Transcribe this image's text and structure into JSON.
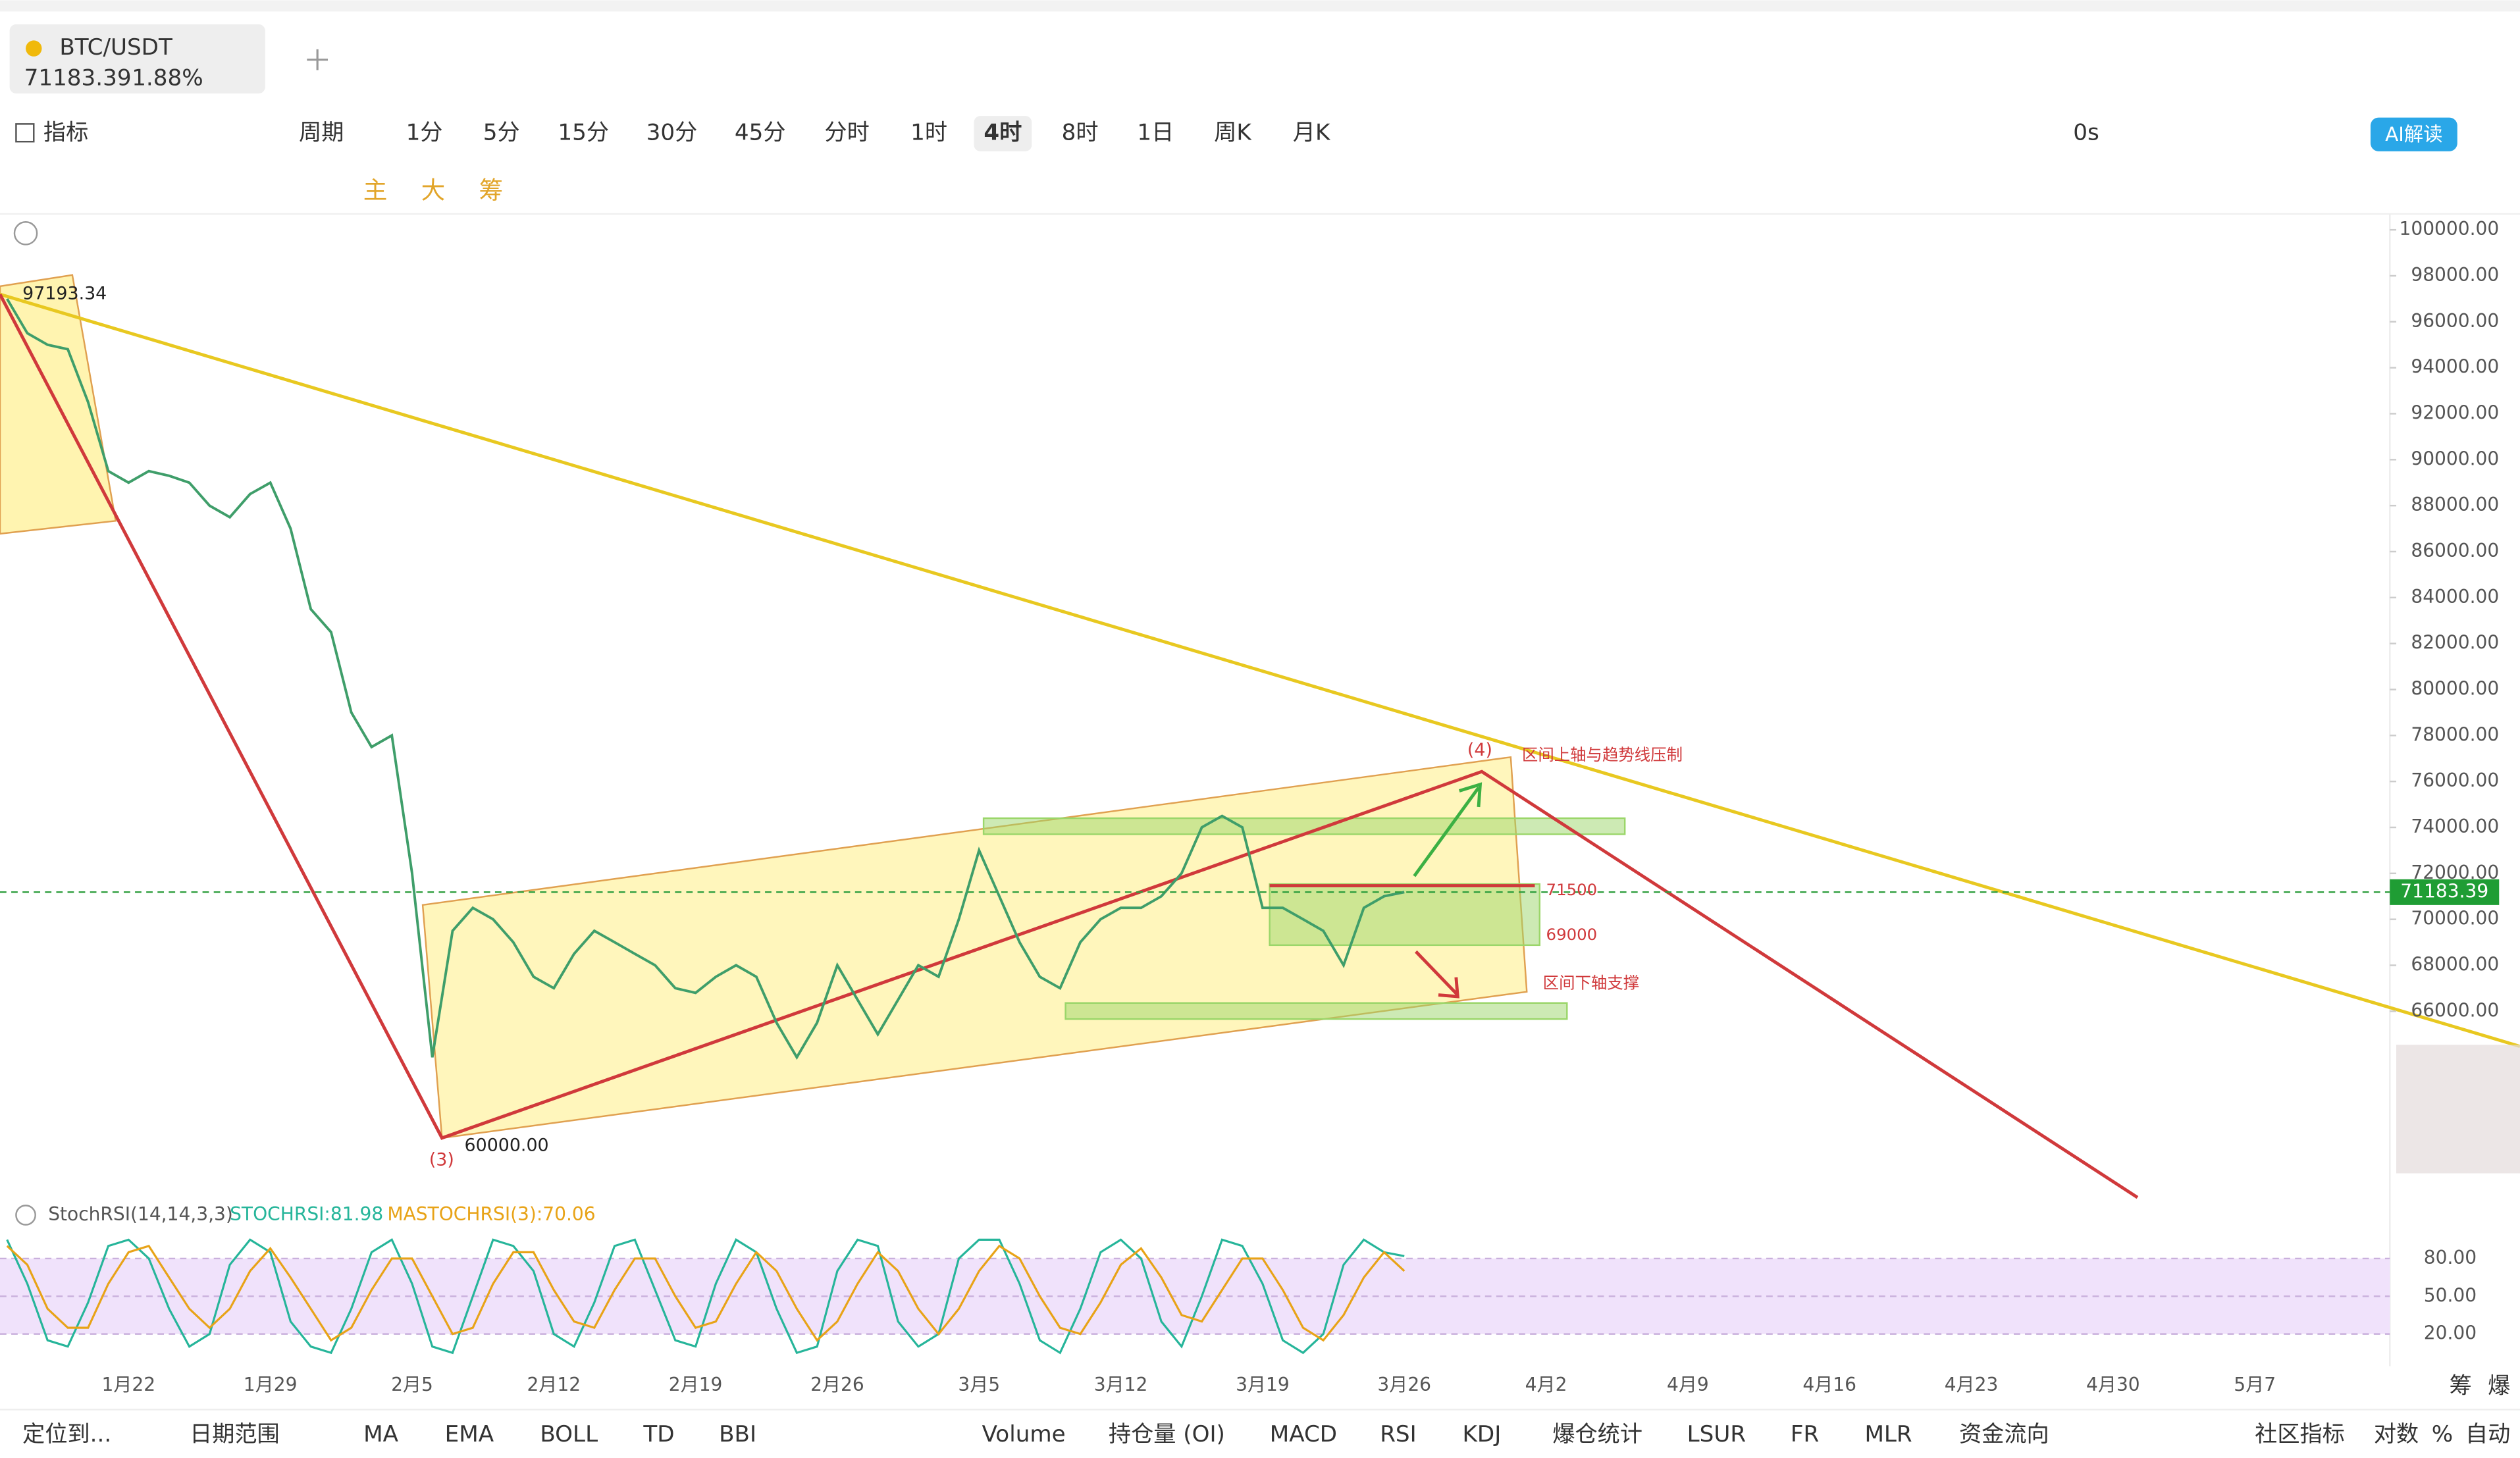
{
  "tab": {
    "symbol": "BTC/USDT",
    "price": "71183.39",
    "change": "1.88%"
  },
  "toolbar": {
    "indicator": "指标",
    "period": "周期",
    "intervals": [
      "1分",
      "5分",
      "15分",
      "30分",
      "45分",
      "分时",
      "1时",
      "4时",
      "8时",
      "1日",
      "周K",
      "月K"
    ],
    "active_interval": 7,
    "countdown": "0s",
    "ai": "AI解读"
  },
  "tools": {
    "main": "主",
    "big": "大",
    "chip": "筹"
  },
  "bottom_bar": {
    "locate": "定位到...",
    "range": "日期范围",
    "main_indicators": [
      "MA",
      "EMA",
      "BOLL",
      "TD",
      "BBI"
    ],
    "sub_indicators": [
      "Volume",
      "持仓量 (OI)",
      "MACD",
      "RSI",
      "KDJ",
      "爆仓统计",
      "LSUR",
      "FR",
      "MLR",
      "资金流向"
    ],
    "community": "社区指标",
    "log": "对数",
    "percent": "%",
    "auto": "自动"
  },
  "side": [
    "筹",
    "爆"
  ],
  "chart_data": {
    "type": "line",
    "ylim": [
      57900,
      100900
    ],
    "yticks": [
      {
        "value": 100000,
        "label": "100000.00"
      },
      {
        "value": 98000,
        "label": "98000.00"
      },
      {
        "value": 96000,
        "label": "96000.00"
      },
      {
        "value": 94000,
        "label": "94000.00"
      },
      {
        "value": 92000,
        "label": "92000.00"
      },
      {
        "value": 90000,
        "label": "90000.00"
      },
      {
        "value": 88000,
        "label": "88000.00"
      },
      {
        "value": 86000,
        "label": "86000.00"
      },
      {
        "value": 84000,
        "label": "84000.00"
      },
      {
        "value": 82000,
        "label": "82000.00"
      },
      {
        "value": 80000,
        "label": "80000.00"
      },
      {
        "value": 78000,
        "label": "78000.00"
      },
      {
        "value": 76000,
        "label": "76000.00"
      },
      {
        "value": 74000,
        "label": "74000.00"
      },
      {
        "value": 72000,
        "label": "72000.00"
      },
      {
        "value": 70000,
        "label": "70000.00"
      },
      {
        "value": 68000,
        "label": "68000.00"
      },
      {
        "value": 66000,
        "label": "66000.00"
      }
    ],
    "y2lim": [
      -3,
      103
    ],
    "y2ticks": [
      {
        "value": 80,
        "label": "80.00"
      },
      {
        "value": 50,
        "label": "50.00"
      },
      {
        "value": 20,
        "label": "20.00"
      }
    ],
    "current_price": 71183.39,
    "indicator_label": "StochRSI(14,14,3,3)",
    "annotations": [
      "97193.34",
      "60000.00",
      "71500",
      "69000",
      "区间上轴与趋势线压制",
      "区间下轴支撑",
      "(3)",
      "(4)"
    ],
    "categories": [
      null,
      null,
      null,
      null,
      null,
      null,
      "1月22",
      null,
      null,
      null,
      null,
      null,
      null,
      "1月29",
      null,
      null,
      null,
      null,
      null,
      null,
      "2月5",
      null,
      null,
      null,
      null,
      null,
      null,
      "2月12",
      null,
      null,
      null,
      null,
      null,
      null,
      "2月19",
      null,
      null,
      null,
      null,
      null,
      null,
      "2月26",
      null,
      null,
      null,
      null,
      null,
      null,
      "3月5",
      null,
      null,
      null,
      null,
      null,
      null,
      "3月12",
      null,
      null,
      null,
      null,
      null,
      null,
      "3月19",
      null,
      null,
      null,
      null,
      null,
      null,
      "3月26",
      null,
      null,
      null,
      null,
      null,
      null,
      "4月2",
      null,
      null,
      null,
      null,
      null,
      null,
      "4月9",
      null,
      null,
      null,
      null,
      null,
      null,
      "4月16",
      null,
      null,
      null,
      null,
      null,
      null,
      "4月23",
      null,
      null,
      null,
      null,
      null,
      null,
      "4月30",
      null,
      null,
      null,
      null,
      null,
      null,
      "5月7"
    ],
    "series": [
      {
        "color": "#3f9e6a",
        "values": [
          97000,
          95500,
          95000,
          94800,
          92500,
          89500,
          89000,
          89500,
          89300,
          89000,
          88000,
          87500,
          88500,
          89000,
          87000,
          83500,
          82500,
          79000,
          77500,
          78000,
          72000,
          64000,
          69500,
          70500,
          70000,
          69000,
          67500,
          67000,
          68500,
          69500,
          69000,
          68500,
          68000,
          67000,
          66800,
          67500,
          68000,
          67500,
          65500,
          64000,
          65500,
          68000,
          66500,
          65000,
          66500,
          68000,
          67500,
          70000,
          73000,
          71000,
          69000,
          67500,
          67000,
          69000,
          70000,
          70500,
          70500,
          71000,
          72000,
          74000,
          74500,
          74000,
          70500,
          70500,
          70000,
          69500,
          68000,
          70500,
          71000,
          71183.39,
          null,
          null,
          null,
          null,
          null,
          null,
          null,
          null,
          null,
          null,
          null,
          null,
          null,
          null,
          null,
          null,
          null,
          null,
          null,
          null,
          null,
          null,
          null,
          null,
          null,
          null,
          null,
          null,
          null,
          null,
          null,
          null,
          null,
          null,
          null,
          null,
          null,
          null,
          null,
          null,
          null,
          null
        ]
      },
      {
        "name": "STOCHRSI:81.98",
        "color": "#26b59a",
        "axis": "y2",
        "values": [
          95,
          60,
          15,
          10,
          45,
          90,
          95,
          80,
          40,
          10,
          20,
          75,
          95,
          85,
          30,
          10,
          5,
          40,
          85,
          95,
          60,
          10,
          5,
          50,
          95,
          90,
          70,
          20,
          10,
          45,
          90,
          95,
          55,
          15,
          10,
          60,
          95,
          85,
          40,
          5,
          10,
          70,
          95,
          90,
          30,
          10,
          20,
          80,
          95,
          95,
          60,
          15,
          5,
          40,
          85,
          95,
          80,
          30,
          10,
          50,
          95,
          90,
          60,
          15,
          5,
          20,
          75,
          95,
          85,
          81.98,
          null,
          null,
          null,
          null,
          null,
          null,
          null,
          null,
          null,
          null,
          null,
          null,
          null,
          null,
          null,
          null,
          null,
          null,
          null,
          null,
          null,
          null,
          null,
          null,
          null,
          null,
          null,
          null,
          null,
          null,
          null,
          null,
          null,
          null,
          null,
          null,
          null,
          null,
          null,
          null,
          null,
          null
        ]
      },
      {
        "name": "MASTOCHRSI(3):70.06",
        "color": "#e8a317",
        "axis": "y2",
        "values": [
          90,
          75,
          40,
          25,
          25,
          60,
          85,
          90,
          65,
          40,
          25,
          40,
          70,
          88,
          65,
          40,
          15,
          25,
          55,
          80,
          80,
          50,
          20,
          25,
          60,
          85,
          85,
          55,
          30,
          25,
          55,
          80,
          80,
          50,
          25,
          30,
          60,
          85,
          70,
          40,
          15,
          30,
          60,
          85,
          70,
          40,
          20,
          40,
          70,
          90,
          80,
          50,
          25,
          20,
          45,
          75,
          88,
          65,
          35,
          30,
          55,
          80,
          80,
          55,
          25,
          15,
          35,
          65,
          85,
          70.06,
          null,
          null,
          null,
          null,
          null,
          null,
          null,
          null,
          null,
          null,
          null,
          null,
          null,
          null,
          null,
          null,
          null,
          null,
          null,
          null,
          null,
          null,
          null,
          null,
          null,
          null,
          null,
          null,
          null,
          null,
          null,
          null,
          null,
          null,
          null,
          null,
          null,
          null,
          null,
          null,
          null,
          null
        ]
      }
    ]
  }
}
